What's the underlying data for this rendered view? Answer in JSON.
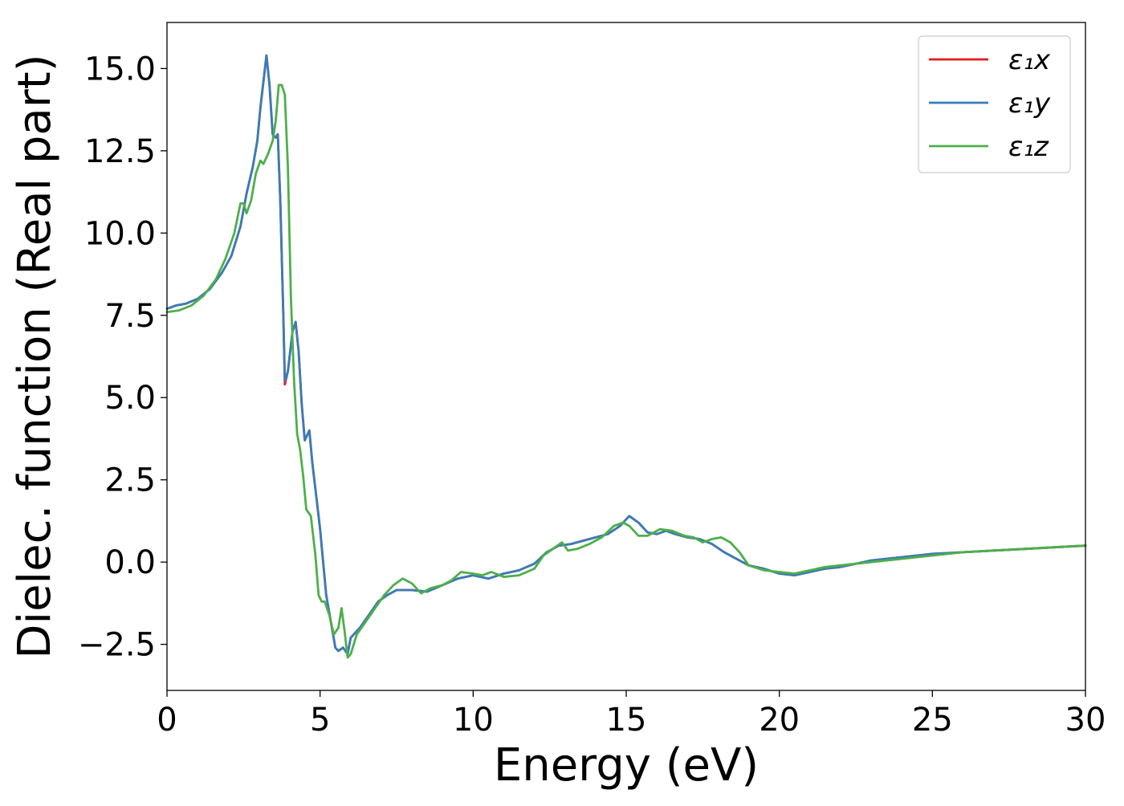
{
  "chart_data": {
    "type": "line",
    "title": "",
    "xlabel": "Energy (eV)",
    "ylabel": "Dielec. function (Real part)",
    "xlim": [
      0,
      30
    ],
    "ylim": [
      -3.9,
      16.4
    ],
    "xticks": [
      0,
      5,
      10,
      15,
      20,
      25,
      30
    ],
    "xtick_labels": [
      "0",
      "5",
      "10",
      "15",
      "20",
      "25",
      "30"
    ],
    "yticks": [
      -2.5,
      0.0,
      2.5,
      5.0,
      7.5,
      10.0,
      12.5,
      15.0
    ],
    "ytick_labels": [
      "−2.5",
      "0.0",
      "2.5",
      "5.0",
      "7.5",
      "10.0",
      "12.5",
      "15.0"
    ],
    "grid": false,
    "legend_position": "top-right",
    "series": [
      {
        "name": "ε₁x",
        "color": "#e41a1c",
        "points": [
          [
            0,
            7.7
          ],
          [
            0.3,
            7.8
          ],
          [
            0.6,
            7.85
          ],
          [
            1.0,
            8.0
          ],
          [
            1.4,
            8.3
          ],
          [
            1.8,
            8.8
          ],
          [
            2.1,
            9.3
          ],
          [
            2.4,
            10.2
          ],
          [
            2.6,
            11.2
          ],
          [
            2.8,
            12.0
          ],
          [
            2.95,
            12.8
          ],
          [
            3.05,
            13.8
          ],
          [
            3.15,
            14.6
          ],
          [
            3.25,
            15.4
          ],
          [
            3.35,
            14.5
          ],
          [
            3.45,
            13.0
          ],
          [
            3.55,
            12.9
          ],
          [
            3.62,
            13.0
          ],
          [
            3.7,
            11.0
          ],
          [
            3.8,
            7.5
          ],
          [
            3.85,
            5.4
          ],
          [
            3.95,
            5.8
          ],
          [
            4.1,
            7.0
          ],
          [
            4.2,
            7.3
          ],
          [
            4.3,
            6.4
          ],
          [
            4.4,
            4.8
          ],
          [
            4.5,
            3.7
          ],
          [
            4.6,
            3.9
          ],
          [
            4.65,
            4.0
          ],
          [
            4.75,
            3.0
          ],
          [
            4.9,
            1.8
          ],
          [
            5.0,
            1.0
          ],
          [
            5.1,
            0.0
          ],
          [
            5.2,
            -1.0
          ],
          [
            5.35,
            -1.8
          ],
          [
            5.5,
            -2.6
          ],
          [
            5.6,
            -2.7
          ],
          [
            5.75,
            -2.6
          ],
          [
            5.9,
            -2.8
          ],
          [
            6.0,
            -2.3
          ],
          [
            6.3,
            -2.0
          ],
          [
            6.6,
            -1.6
          ],
          [
            6.9,
            -1.2
          ],
          [
            7.2,
            -1.0
          ],
          [
            7.5,
            -0.85
          ],
          [
            8.0,
            -0.85
          ],
          [
            8.5,
            -0.9
          ],
          [
            9.0,
            -0.7
          ],
          [
            9.5,
            -0.5
          ],
          [
            10.0,
            -0.4
          ],
          [
            10.5,
            -0.5
          ],
          [
            11.0,
            -0.35
          ],
          [
            11.5,
            -0.25
          ],
          [
            12.0,
            -0.05
          ],
          [
            12.4,
            0.3
          ],
          [
            12.8,
            0.5
          ],
          [
            13.2,
            0.55
          ],
          [
            13.6,
            0.65
          ],
          [
            14.0,
            0.75
          ],
          [
            14.4,
            0.85
          ],
          [
            14.8,
            1.1
          ],
          [
            15.1,
            1.4
          ],
          [
            15.4,
            1.2
          ],
          [
            15.7,
            0.9
          ],
          [
            16.0,
            0.85
          ],
          [
            16.3,
            0.95
          ],
          [
            16.6,
            0.85
          ],
          [
            17.0,
            0.75
          ],
          [
            17.4,
            0.7
          ],
          [
            17.8,
            0.55
          ],
          [
            18.2,
            0.3
          ],
          [
            18.6,
            0.1
          ],
          [
            19.0,
            -0.1
          ],
          [
            19.5,
            -0.2
          ],
          [
            20.0,
            -0.35
          ],
          [
            20.5,
            -0.4
          ],
          [
            21.0,
            -0.3
          ],
          [
            21.5,
            -0.2
          ],
          [
            22.0,
            -0.15
          ],
          [
            22.5,
            -0.05
          ],
          [
            23.0,
            0.05
          ],
          [
            24.0,
            0.15
          ],
          [
            25.0,
            0.25
          ],
          [
            26.0,
            0.3
          ],
          [
            27.0,
            0.35
          ],
          [
            28.0,
            0.4
          ],
          [
            29.0,
            0.45
          ],
          [
            30.0,
            0.5
          ]
        ]
      },
      {
        "name": "ε₁y",
        "color": "#377eb8",
        "points": [
          [
            0,
            7.7
          ],
          [
            0.3,
            7.8
          ],
          [
            0.6,
            7.85
          ],
          [
            1.0,
            8.0
          ],
          [
            1.4,
            8.3
          ],
          [
            1.8,
            8.8
          ],
          [
            2.1,
            9.3
          ],
          [
            2.4,
            10.2
          ],
          [
            2.6,
            11.2
          ],
          [
            2.8,
            12.0
          ],
          [
            2.95,
            12.8
          ],
          [
            3.05,
            13.8
          ],
          [
            3.15,
            14.6
          ],
          [
            3.25,
            15.4
          ],
          [
            3.35,
            14.5
          ],
          [
            3.45,
            13.0
          ],
          [
            3.55,
            12.9
          ],
          [
            3.62,
            13.0
          ],
          [
            3.7,
            11.0
          ],
          [
            3.8,
            7.5
          ],
          [
            3.85,
            5.5
          ],
          [
            3.95,
            5.8
          ],
          [
            4.1,
            7.0
          ],
          [
            4.2,
            7.3
          ],
          [
            4.3,
            6.4
          ],
          [
            4.4,
            4.8
          ],
          [
            4.5,
            3.7
          ],
          [
            4.6,
            3.9
          ],
          [
            4.65,
            4.0
          ],
          [
            4.75,
            3.0
          ],
          [
            4.9,
            1.8
          ],
          [
            5.0,
            1.0
          ],
          [
            5.1,
            0.0
          ],
          [
            5.2,
            -1.0
          ],
          [
            5.35,
            -1.8
          ],
          [
            5.5,
            -2.6
          ],
          [
            5.6,
            -2.7
          ],
          [
            5.75,
            -2.6
          ],
          [
            5.9,
            -2.8
          ],
          [
            6.0,
            -2.3
          ],
          [
            6.3,
            -2.0
          ],
          [
            6.6,
            -1.6
          ],
          [
            6.9,
            -1.2
          ],
          [
            7.2,
            -1.0
          ],
          [
            7.5,
            -0.85
          ],
          [
            8.0,
            -0.85
          ],
          [
            8.5,
            -0.9
          ],
          [
            9.0,
            -0.7
          ],
          [
            9.5,
            -0.5
          ],
          [
            10.0,
            -0.4
          ],
          [
            10.5,
            -0.5
          ],
          [
            11.0,
            -0.35
          ],
          [
            11.5,
            -0.25
          ],
          [
            12.0,
            -0.05
          ],
          [
            12.4,
            0.3
          ],
          [
            12.8,
            0.5
          ],
          [
            13.2,
            0.55
          ],
          [
            13.6,
            0.65
          ],
          [
            14.0,
            0.75
          ],
          [
            14.4,
            0.85
          ],
          [
            14.8,
            1.1
          ],
          [
            15.1,
            1.4
          ],
          [
            15.4,
            1.2
          ],
          [
            15.7,
            0.9
          ],
          [
            16.0,
            0.85
          ],
          [
            16.3,
            0.95
          ],
          [
            16.6,
            0.85
          ],
          [
            17.0,
            0.75
          ],
          [
            17.4,
            0.7
          ],
          [
            17.8,
            0.55
          ],
          [
            18.2,
            0.3
          ],
          [
            18.6,
            0.1
          ],
          [
            19.0,
            -0.1
          ],
          [
            19.5,
            -0.2
          ],
          [
            20.0,
            -0.35
          ],
          [
            20.5,
            -0.4
          ],
          [
            21.0,
            -0.3
          ],
          [
            21.5,
            -0.2
          ],
          [
            22.0,
            -0.15
          ],
          [
            22.5,
            -0.05
          ],
          [
            23.0,
            0.05
          ],
          [
            24.0,
            0.15
          ],
          [
            25.0,
            0.25
          ],
          [
            26.0,
            0.3
          ],
          [
            27.0,
            0.35
          ],
          [
            28.0,
            0.4
          ],
          [
            29.0,
            0.45
          ],
          [
            30.0,
            0.5
          ]
        ]
      },
      {
        "name": "ε₁z",
        "color": "#4daf4a",
        "points": [
          [
            0,
            7.6
          ],
          [
            0.4,
            7.65
          ],
          [
            0.8,
            7.8
          ],
          [
            1.2,
            8.1
          ],
          [
            1.6,
            8.6
          ],
          [
            1.9,
            9.2
          ],
          [
            2.2,
            10.0
          ],
          [
            2.4,
            10.9
          ],
          [
            2.5,
            10.9
          ],
          [
            2.6,
            10.6
          ],
          [
            2.75,
            11.0
          ],
          [
            2.9,
            11.8
          ],
          [
            3.05,
            12.2
          ],
          [
            3.15,
            12.1
          ],
          [
            3.3,
            12.4
          ],
          [
            3.45,
            12.8
          ],
          [
            3.55,
            13.4
          ],
          [
            3.65,
            14.5
          ],
          [
            3.75,
            14.5
          ],
          [
            3.85,
            14.2
          ],
          [
            3.95,
            12.0
          ],
          [
            4.05,
            8.0
          ],
          [
            4.15,
            5.5
          ],
          [
            4.25,
            3.9
          ],
          [
            4.35,
            3.4
          ],
          [
            4.45,
            2.6
          ],
          [
            4.55,
            1.6
          ],
          [
            4.7,
            1.4
          ],
          [
            4.85,
            0.2
          ],
          [
            4.95,
            -1.0
          ],
          [
            5.05,
            -1.2
          ],
          [
            5.15,
            -1.2
          ],
          [
            5.3,
            -1.6
          ],
          [
            5.45,
            -2.2
          ],
          [
            5.6,
            -2.0
          ],
          [
            5.7,
            -1.4
          ],
          [
            5.8,
            -2.1
          ],
          [
            5.9,
            -2.9
          ],
          [
            6.0,
            -2.8
          ],
          [
            6.2,
            -2.2
          ],
          [
            6.5,
            -1.8
          ],
          [
            6.8,
            -1.4
          ],
          [
            7.1,
            -1.0
          ],
          [
            7.4,
            -0.7
          ],
          [
            7.7,
            -0.5
          ],
          [
            8.0,
            -0.65
          ],
          [
            8.3,
            -0.95
          ],
          [
            8.6,
            -0.8
          ],
          [
            9.0,
            -0.7
          ],
          [
            9.3,
            -0.55
          ],
          [
            9.6,
            -0.3
          ],
          [
            10.0,
            -0.35
          ],
          [
            10.3,
            -0.4
          ],
          [
            10.6,
            -0.3
          ],
          [
            11.0,
            -0.45
          ],
          [
            11.5,
            -0.4
          ],
          [
            12.0,
            -0.2
          ],
          [
            12.3,
            0.2
          ],
          [
            12.6,
            0.4
          ],
          [
            12.9,
            0.6
          ],
          [
            13.1,
            0.35
          ],
          [
            13.4,
            0.4
          ],
          [
            13.8,
            0.55
          ],
          [
            14.2,
            0.75
          ],
          [
            14.6,
            1.1
          ],
          [
            14.9,
            1.2
          ],
          [
            15.1,
            1.1
          ],
          [
            15.4,
            0.8
          ],
          [
            15.7,
            0.8
          ],
          [
            16.1,
            1.0
          ],
          [
            16.5,
            0.95
          ],
          [
            16.9,
            0.8
          ],
          [
            17.2,
            0.75
          ],
          [
            17.5,
            0.6
          ],
          [
            17.8,
            0.7
          ],
          [
            18.1,
            0.75
          ],
          [
            18.4,
            0.6
          ],
          [
            18.7,
            0.3
          ],
          [
            19.0,
            -0.1
          ],
          [
            19.5,
            -0.25
          ],
          [
            20.0,
            -0.3
          ],
          [
            20.5,
            -0.35
          ],
          [
            21.0,
            -0.25
          ],
          [
            21.5,
            -0.15
          ],
          [
            22.0,
            -0.1
          ],
          [
            22.5,
            -0.05
          ],
          [
            23.0,
            0.0
          ],
          [
            24.0,
            0.1
          ],
          [
            25.0,
            0.2
          ],
          [
            26.0,
            0.3
          ],
          [
            27.0,
            0.35
          ],
          [
            28.0,
            0.4
          ],
          [
            29.0,
            0.45
          ],
          [
            30.0,
            0.5
          ]
        ]
      }
    ]
  }
}
